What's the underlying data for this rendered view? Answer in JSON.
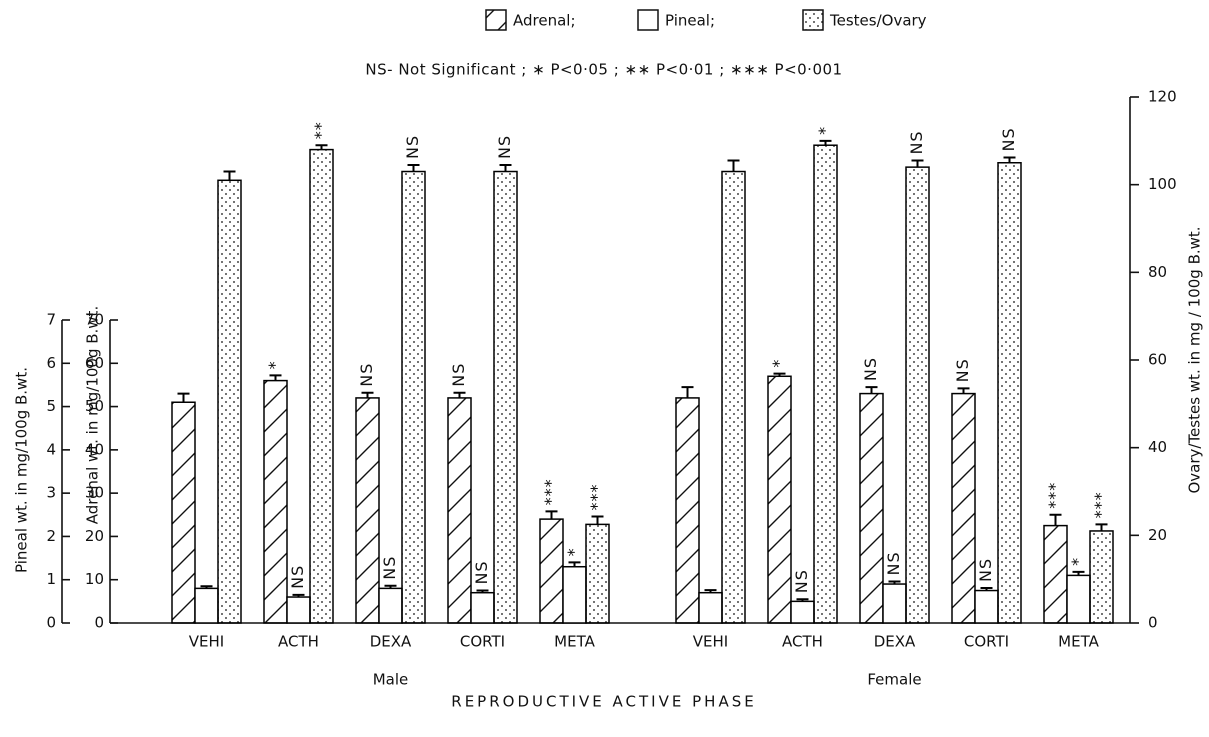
{
  "chart_data": {
    "type": "bar",
    "legend": [
      "Adrenal;",
      "Pineal;",
      "Testes/Ovary"
    ],
    "subtitle": "NS- Not Significant ; ∗ P<0·05 ; ∗∗ P<0·01 ; ∗∗∗ P<0·001",
    "title": "REPRODUCTIVE ACTIVE PHASE",
    "groups": [
      "Male",
      "Female"
    ],
    "categories": [
      "VEHI",
      "ACTH",
      "DEXA",
      "CORTI",
      "META",
      "VEHI",
      "ACTH",
      "DEXA",
      "CORTI",
      "META"
    ],
    "pineal_label": "Pineal wt. in mg/100g B.wt.",
    "ylabel": "Adrenal wt. in mg/100g B.wt.",
    "y2label": "Ovary/Testes wt. in mg / 100g B.wt.",
    "pineal_ylim": [
      0,
      7
    ],
    "pineal_yticks": [
      0,
      1,
      2,
      3,
      4,
      5,
      6,
      7
    ],
    "ylim": [
      0,
      70
    ],
    "yticks": [
      0,
      10,
      20,
      30,
      40,
      50,
      60,
      70
    ],
    "y2lim": [
      0,
      120
    ],
    "y2ticks": [
      0,
      20,
      40,
      60,
      80,
      100,
      120
    ],
    "series": [
      {
        "name": "Adrenal;",
        "axis": "y",
        "pattern": "hatch",
        "color": "#000000",
        "values": [
          51,
          56,
          52,
          52,
          24,
          52,
          57,
          53,
          53,
          22.5
        ],
        "errors": [
          2,
          1.2,
          1.2,
          1.2,
          1.8,
          2.5,
          0.6,
          1.5,
          1.2,
          2.5
        ],
        "significance": [
          null,
          "*",
          "NS",
          "NS",
          "***",
          null,
          "*",
          "NS",
          "NS",
          "***"
        ]
      },
      {
        "name": "Pineal;",
        "axis": "pineal",
        "pattern": "plain",
        "color": "#000000",
        "values": [
          0.8,
          0.6,
          0.8,
          0.7,
          1.3,
          0.7,
          0.5,
          0.9,
          0.75,
          1.1
        ],
        "errors": [
          0.05,
          0.05,
          0.06,
          0.05,
          0.1,
          0.06,
          0.05,
          0.06,
          0.06,
          0.08
        ],
        "significance": [
          null,
          "NS",
          "NS",
          "NS",
          "*",
          null,
          "NS",
          "NS",
          "NS",
          "*"
        ]
      },
      {
        "name": "Testes/Ovary",
        "axis": "y2",
        "pattern": "dots",
        "color": "#000000",
        "values": [
          101,
          108,
          103,
          103,
          22.5,
          103,
          109,
          104,
          105,
          21
        ],
        "errors": [
          2,
          1,
          1.5,
          1.5,
          1.8,
          2.5,
          1,
          1.5,
          1.2,
          1.5
        ],
        "significance": [
          null,
          "**",
          "NS",
          "NS",
          "***",
          null,
          "*",
          "NS",
          "NS",
          "***"
        ]
      }
    ]
  }
}
